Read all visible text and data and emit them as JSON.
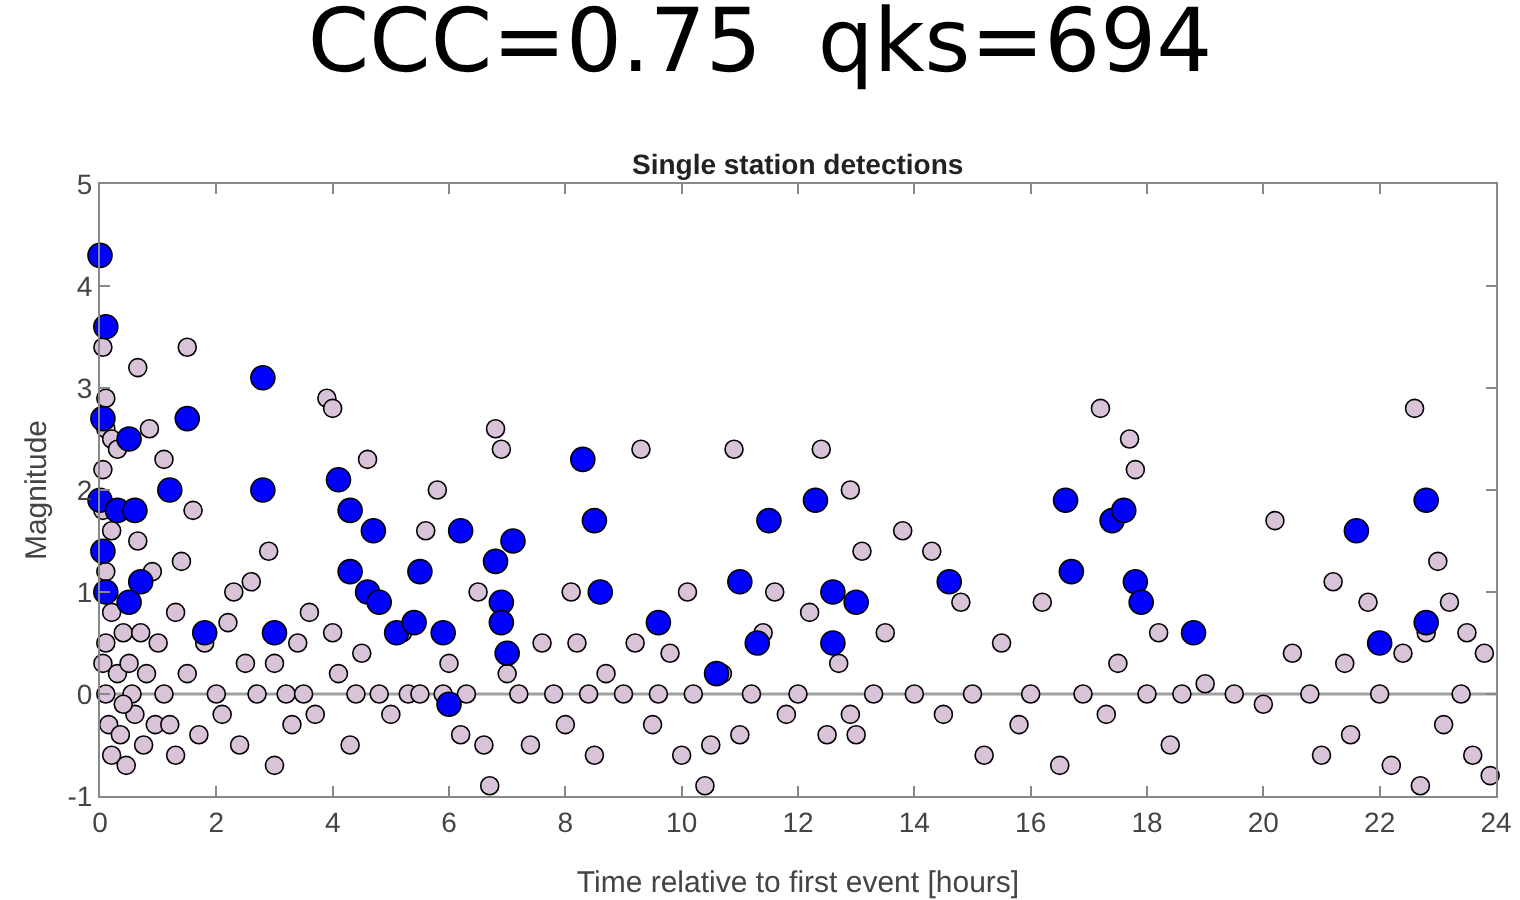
{
  "chart_data": {
    "type": "scatter",
    "title": "CCC=0.75  qks=694",
    "subtitle": "Single station detections",
    "xlabel": "Time relative to first event [hours]",
    "ylabel": "Magnitude",
    "xlim": [
      0,
      24
    ],
    "xticks": [
      0,
      2,
      4,
      6,
      8,
      10,
      12,
      14,
      16,
      18,
      20,
      22,
      24
    ],
    "ylim": [
      -1,
      5
    ],
    "yticks": [
      -1,
      0,
      1,
      2,
      3,
      4,
      5
    ],
    "grid": false,
    "marker": "circle",
    "ref_lines": [
      {
        "axis": "y",
        "value": 0,
        "color": "#a0a0a0"
      }
    ],
    "series": [
      {
        "color": "#d9c3d9",
        "x": [
          0.05,
          0.1,
          0.1,
          0.2,
          0.05,
          0.3,
          0.05,
          0.2,
          0.1,
          0.2,
          0.1,
          0.05,
          0.1,
          0.15,
          0.2,
          0.3,
          0.35,
          0.4,
          0.45,
          0.5,
          0.55,
          0.6,
          0.65,
          0.7,
          0.75,
          0.8,
          0.85,
          0.9,
          0.95,
          1.0,
          0.65,
          1.5,
          1.6,
          1.4,
          1.3,
          1.1,
          1.1,
          1.2,
          1.3,
          1.5,
          1.7,
          1.8,
          2.0,
          2.1,
          2.2,
          2.3,
          2.4,
          2.5,
          2.6,
          2.7,
          2.9,
          3.0,
          3.2,
          3.3,
          3.4,
          3.5,
          3.6,
          3.7,
          3.9,
          4.0,
          4.0,
          4.1,
          4.3,
          4.4,
          4.5,
          4.6,
          4.8,
          5.0,
          5.2,
          5.3,
          5.6,
          5.8,
          5.9,
          6.0,
          6.2,
          6.3,
          6.5,
          6.6,
          6.7,
          6.8,
          6.9,
          7.0,
          7.2,
          7.4,
          7.6,
          7.8,
          8.0,
          8.1,
          8.2,
          8.4,
          8.5,
          8.7,
          9.0,
          9.2,
          9.3,
          9.5,
          9.6,
          9.8,
          10.0,
          10.1,
          10.2,
          10.4,
          10.5,
          10.7,
          10.9,
          11.0,
          11.2,
          11.4,
          11.6,
          11.8,
          12.0,
          12.2,
          12.4,
          12.5,
          12.7,
          12.9,
          13.0,
          13.1,
          13.3,
          13.5,
          13.8,
          14.0,
          14.3,
          14.5,
          14.8,
          15.0,
          15.2,
          15.5,
          15.8,
          16.0,
          16.2,
          16.5,
          16.9,
          17.2,
          17.3,
          17.5,
          17.7,
          17.8,
          18.0,
          18.2,
          18.4,
          18.6,
          19.0,
          20.2,
          20.0,
          20.5,
          20.8,
          21.0,
          21.2,
          21.4,
          21.5,
          21.8,
          22.0,
          22.2,
          22.4,
          22.6,
          22.7,
          22.8,
          23.0,
          23.1,
          23.2,
          23.4,
          23.6,
          23.8,
          23.9,
          23.5,
          19.5,
          12.9,
          5.5,
          3.0,
          0.4
        ],
        "values": [
          3.4,
          2.9,
          2.6,
          2.5,
          2.2,
          2.4,
          1.8,
          1.6,
          1.2,
          0.8,
          0.5,
          0.3,
          0,
          -0.3,
          -0.6,
          0.2,
          -0.4,
          0.6,
          -0.7,
          0.3,
          0,
          -0.2,
          1.5,
          0.6,
          -0.5,
          0.2,
          2.6,
          1.2,
          -0.3,
          0.5,
          3.2,
          3.4,
          1.8,
          1.3,
          0.8,
          2.3,
          0,
          -0.3,
          -0.6,
          0.2,
          -0.4,
          0.5,
          0,
          -0.2,
          0.7,
          1.0,
          -0.5,
          0.3,
          1.1,
          0,
          1.4,
          0.3,
          0,
          -0.3,
          0.5,
          0,
          0.8,
          -0.2,
          2.9,
          2.8,
          0.6,
          0.2,
          -0.5,
          0,
          0.4,
          2.3,
          0,
          -0.2,
          0.6,
          0,
          1.6,
          2.0,
          0,
          0.3,
          -0.4,
          0,
          1.0,
          -0.5,
          -0.9,
          2.6,
          2.4,
          0.2,
          0,
          -0.5,
          0.5,
          0,
          -0.3,
          1.0,
          0.5,
          0,
          -0.6,
          0.2,
          0,
          0.5,
          2.4,
          -0.3,
          0,
          0.4,
          -0.6,
          1.0,
          0,
          -0.9,
          -0.5,
          0.2,
          2.4,
          -0.4,
          0,
          0.6,
          1.0,
          -0.2,
          0,
          0.8,
          2.4,
          -0.4,
          0.3,
          2.0,
          -0.4,
          1.4,
          0,
          0.6,
          1.6,
          0,
          1.4,
          -0.2,
          0.9,
          0,
          -0.6,
          0.5,
          -0.3,
          0,
          0.9,
          -0.7,
          0,
          2.8,
          -0.2,
          0.3,
          2.5,
          2.2,
          0,
          0.6,
          -0.5,
          0,
          0.1,
          1.7,
          -0.1,
          0.4,
          0,
          -0.6,
          1.1,
          0.3,
          -0.4,
          0.9,
          0,
          -0.7,
          0.4,
          2.8,
          -0.9,
          0.6,
          1.3,
          -0.3,
          0.9,
          0,
          -0.6,
          0.4,
          -0.8,
          0.6,
          0,
          -0.2,
          0,
          -0.7,
          -0.1
        ]
      },
      {
        "color": "#0000ff",
        "x": [
          0,
          0.1,
          0.05,
          0.5,
          0,
          0.3,
          0.6,
          0.05,
          0.1,
          1.2,
          1.5,
          0.7,
          0.5,
          2.8,
          2.8,
          3.0,
          1.8,
          4.1,
          4.3,
          4.7,
          4.6,
          4.3,
          4.8,
          5.1,
          5.4,
          5.5,
          5.9,
          6.2,
          6.0,
          6.8,
          6.9,
          6.9,
          7.1,
          7.0,
          8.3,
          8.5,
          8.6,
          9.6,
          10.6,
          11.0,
          11.5,
          11.3,
          12.3,
          12.6,
          13.0,
          12.6,
          14.6,
          16.6,
          16.7,
          17.4,
          17.6,
          17.8,
          17.9,
          18.8,
          21.6,
          22.0,
          22.8,
          22.8
        ],
        "values": [
          4.3,
          3.6,
          2.7,
          2.5,
          1.9,
          1.8,
          1.8,
          1.4,
          1.0,
          2.0,
          2.7,
          1.1,
          0.9,
          3.1,
          2.0,
          0.6,
          0.6,
          2.1,
          1.8,
          1.6,
          1.0,
          1.2,
          0.9,
          0.6,
          0.7,
          1.2,
          0.6,
          1.6,
          -0.1,
          1.3,
          0.9,
          0.7,
          1.5,
          0.4,
          2.3,
          1.7,
          1.0,
          0.7,
          0.2,
          1.1,
          1.7,
          0.5,
          1.9,
          1.0,
          0.9,
          0.5,
          1.1,
          1.9,
          1.2,
          1.7,
          1.8,
          1.1,
          0.9,
          0.6,
          1.6,
          0.5,
          1.9,
          0.7
        ]
      }
    ]
  }
}
